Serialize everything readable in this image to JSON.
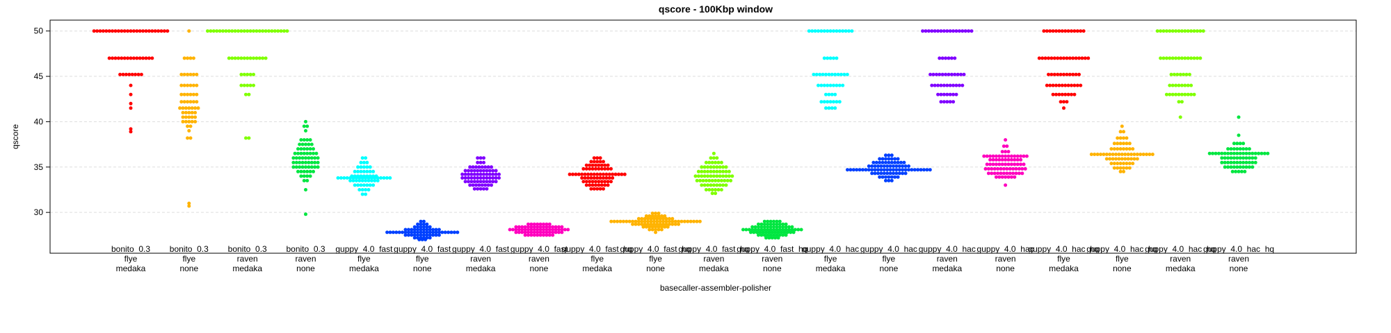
{
  "chart_data": {
    "type": "scatter",
    "subtype": "beeswarm",
    "title": "qscore - 100Kbp window",
    "xlabel": "basecaller-assembler-polisher",
    "ylabel": "qscore",
    "ylim": [
      25.5,
      51.2
    ],
    "yticks": [
      30,
      35,
      40,
      45,
      50
    ],
    "grid": "horizontal dashed",
    "legend": "none",
    "categories": [
      {
        "lines": [
          "bonito_0.3",
          "flye",
          "medaka"
        ],
        "color": "#FF0000",
        "levels": [
          [
            50,
            25
          ],
          [
            47,
            15
          ],
          [
            45.2,
            8
          ],
          [
            44,
            1
          ],
          [
            43,
            1
          ],
          [
            42,
            1
          ],
          [
            41.5,
            1
          ],
          [
            39.2,
            1
          ],
          [
            38.9,
            1
          ]
        ]
      },
      {
        "lines": [
          "bonito_0.3",
          "flye",
          "none"
        ],
        "color": "#FFB300",
        "levels": [
          [
            50,
            1
          ],
          [
            47,
            4
          ],
          [
            45.2,
            6
          ],
          [
            44,
            6
          ],
          [
            43,
            6
          ],
          [
            42.2,
            6
          ],
          [
            41.5,
            7
          ],
          [
            41,
            5
          ],
          [
            40.5,
            5
          ],
          [
            40,
            5
          ],
          [
            39.5,
            2
          ],
          [
            39,
            1
          ],
          [
            38.2,
            2
          ],
          [
            31,
            1
          ],
          [
            30.7,
            1
          ]
        ]
      },
      {
        "lines": [
          "bonito_0.3",
          "raven",
          "medaka"
        ],
        "color": "#80FF00",
        "levels": [
          [
            50,
            27
          ],
          [
            47,
            13
          ],
          [
            45.2,
            5
          ],
          [
            44,
            5
          ],
          [
            43,
            2
          ],
          [
            38.2,
            2
          ]
        ]
      },
      {
        "lines": [
          "bonito_0.3",
          "raven",
          "none"
        ],
        "color": "#00E640",
        "levels": [
          [
            40,
            1
          ],
          [
            39.5,
            2
          ],
          [
            39,
            1
          ],
          [
            38,
            4
          ],
          [
            37.5,
            5
          ],
          [
            37,
            6
          ],
          [
            36.5,
            8
          ],
          [
            36,
            9
          ],
          [
            35.5,
            9
          ],
          [
            35,
            9
          ],
          [
            34.5,
            6
          ],
          [
            34,
            4
          ],
          [
            33.5,
            2
          ],
          [
            32.5,
            1
          ],
          [
            29.8,
            1
          ]
        ]
      },
      {
        "lines": [
          "guppy_4.0_fast",
          "flye",
          "medaka"
        ],
        "color": "#00FFFF",
        "levels": [
          [
            36,
            2
          ],
          [
            35.5,
            3
          ],
          [
            35,
            5
          ],
          [
            34.5,
            7
          ],
          [
            34,
            9
          ],
          [
            33.8,
            18
          ],
          [
            33.5,
            10
          ],
          [
            33,
            7
          ],
          [
            32.5,
            4
          ],
          [
            32,
            2
          ]
        ]
      },
      {
        "lines": [
          "guppy_4.0_fast",
          "flye",
          "none"
        ],
        "color": "#0040FF",
        "levels": [
          [
            29,
            2
          ],
          [
            28.7,
            4
          ],
          [
            28.4,
            6
          ],
          [
            28.1,
            12
          ],
          [
            27.8,
            24
          ],
          [
            27.5,
            12
          ],
          [
            27.2,
            6
          ],
          [
            27,
            3
          ]
        ]
      },
      {
        "lines": [
          "guppy_4.0_fast",
          "raven",
          "medaka"
        ],
        "color": "#8000FF",
        "levels": [
          [
            36,
            3
          ],
          [
            35.5,
            3
          ],
          [
            35,
            8
          ],
          [
            34.6,
            11
          ],
          [
            34.2,
            13
          ],
          [
            33.8,
            13
          ],
          [
            33.4,
            11
          ],
          [
            33,
            8
          ],
          [
            32.6,
            5
          ]
        ]
      },
      {
        "lines": [
          "guppy_4.0_fast",
          "raven",
          "none"
        ],
        "color": "#FF00BF",
        "levels": [
          [
            28.7,
            8
          ],
          [
            28.4,
            16
          ],
          [
            28.1,
            20
          ],
          [
            27.8,
            16
          ],
          [
            27.5,
            10
          ]
        ]
      },
      {
        "lines": [
          "guppy_4.0_fast_hq",
          "flye",
          "medaka"
        ],
        "color": "#FF0000",
        "levels": [
          [
            36,
            3
          ],
          [
            35.6,
            5
          ],
          [
            35.2,
            8
          ],
          [
            34.8,
            10
          ],
          [
            34.2,
            19
          ],
          [
            33.8,
            11
          ],
          [
            33.4,
            10
          ],
          [
            33,
            8
          ],
          [
            32.6,
            5
          ]
        ]
      },
      {
        "lines": [
          "guppy_4.0_fast_hq",
          "flye",
          "none"
        ],
        "color": "#FFB300",
        "levels": [
          [
            29.9,
            3
          ],
          [
            29.6,
            7
          ],
          [
            29.3,
            12
          ],
          [
            29,
            30
          ],
          [
            28.7,
            16
          ],
          [
            28.4,
            9
          ],
          [
            28.1,
            5
          ],
          [
            27.8,
            1
          ]
        ]
      },
      {
        "lines": [
          "guppy_4.0_fast_hq",
          "raven",
          "medaka"
        ],
        "color": "#80FF00",
        "levels": [
          [
            36.5,
            1
          ],
          [
            36,
            3
          ],
          [
            35.5,
            6
          ],
          [
            35,
            9
          ],
          [
            34.5,
            11
          ],
          [
            34,
            13
          ],
          [
            33.5,
            12
          ],
          [
            33,
            9
          ],
          [
            32.5,
            6
          ],
          [
            32.1,
            2
          ]
        ]
      },
      {
        "lines": [
          "guppy_4.0_fast_hq",
          "raven",
          "none"
        ],
        "color": "#00E640",
        "levels": [
          [
            29,
            6
          ],
          [
            28.7,
            10
          ],
          [
            28.4,
            14
          ],
          [
            28.1,
            20
          ],
          [
            27.8,
            15
          ],
          [
            27.5,
            10
          ],
          [
            27.2,
            5
          ]
        ]
      },
      {
        "lines": [
          "guppy_4.0_hac",
          "flye",
          "medaka"
        ],
        "color": "#00FFFF",
        "levels": [
          [
            50,
            15
          ],
          [
            47,
            5
          ],
          [
            45.2,
            12
          ],
          [
            44,
            9
          ],
          [
            43,
            4
          ],
          [
            42.2,
            7
          ],
          [
            41.5,
            4
          ]
        ]
      },
      {
        "lines": [
          "guppy_4.0_hac",
          "flye",
          "none"
        ],
        "color": "#0040FF",
        "levels": [
          [
            36.3,
            3
          ],
          [
            35.9,
            7
          ],
          [
            35.5,
            11
          ],
          [
            35.1,
            14
          ],
          [
            34.7,
            28
          ],
          [
            34.3,
            12
          ],
          [
            33.9,
            7
          ],
          [
            33.5,
            3
          ]
        ]
      },
      {
        "lines": [
          "guppy_4.0_hac",
          "raven",
          "medaka"
        ],
        "color": "#8000FF",
        "levels": [
          [
            50,
            17
          ],
          [
            47,
            6
          ],
          [
            45.2,
            12
          ],
          [
            44,
            11
          ],
          [
            43,
            7
          ],
          [
            42.2,
            5
          ]
        ]
      },
      {
        "lines": [
          "guppy_4.0_hac",
          "raven",
          "none"
        ],
        "color": "#FF00BF",
        "levels": [
          [
            38,
            1
          ],
          [
            37.3,
            2
          ],
          [
            36.7,
            3
          ],
          [
            36.2,
            15
          ],
          [
            35.8,
            11
          ],
          [
            35.3,
            13
          ],
          [
            34.8,
            14
          ],
          [
            34.3,
            12
          ],
          [
            33.9,
            7
          ],
          [
            33,
            1
          ]
        ]
      },
      {
        "lines": [
          "guppy_4.0_hac_hq",
          "flye",
          "medaka"
        ],
        "color": "#FF0000",
        "levels": [
          [
            50,
            14
          ],
          [
            47,
            17
          ],
          [
            45.2,
            11
          ],
          [
            44,
            12
          ],
          [
            43,
            8
          ],
          [
            42.2,
            3
          ],
          [
            41.5,
            1
          ]
        ]
      },
      {
        "lines": [
          "guppy_4.0_hac_hq",
          "flye",
          "none"
        ],
        "color": "#FFB300",
        "levels": [
          [
            39.5,
            1
          ],
          [
            38.9,
            2
          ],
          [
            38.2,
            4
          ],
          [
            37.6,
            6
          ],
          [
            37,
            8
          ],
          [
            36.4,
            21
          ],
          [
            35.9,
            11
          ],
          [
            35.4,
            8
          ],
          [
            34.9,
            6
          ],
          [
            34.5,
            2
          ]
        ]
      },
      {
        "lines": [
          "guppy_4.0_hac_hq",
          "raven",
          "medaka"
        ],
        "color": "#80FF00",
        "levels": [
          [
            50,
            16
          ],
          [
            47,
            14
          ],
          [
            45.2,
            7
          ],
          [
            44,
            8
          ],
          [
            43,
            10
          ],
          [
            42.2,
            2
          ],
          [
            40.5,
            1
          ]
        ]
      },
      {
        "lines": [
          "guppy_4.0_hac_hq",
          "raven",
          "none"
        ],
        "color": "#00E640",
        "levels": [
          [
            40.5,
            1
          ],
          [
            38.5,
            1
          ],
          [
            37.6,
            4
          ],
          [
            37,
            8
          ],
          [
            36.5,
            20
          ],
          [
            36,
            12
          ],
          [
            35.5,
            12
          ],
          [
            35,
            10
          ],
          [
            34.5,
            5
          ]
        ]
      }
    ]
  }
}
